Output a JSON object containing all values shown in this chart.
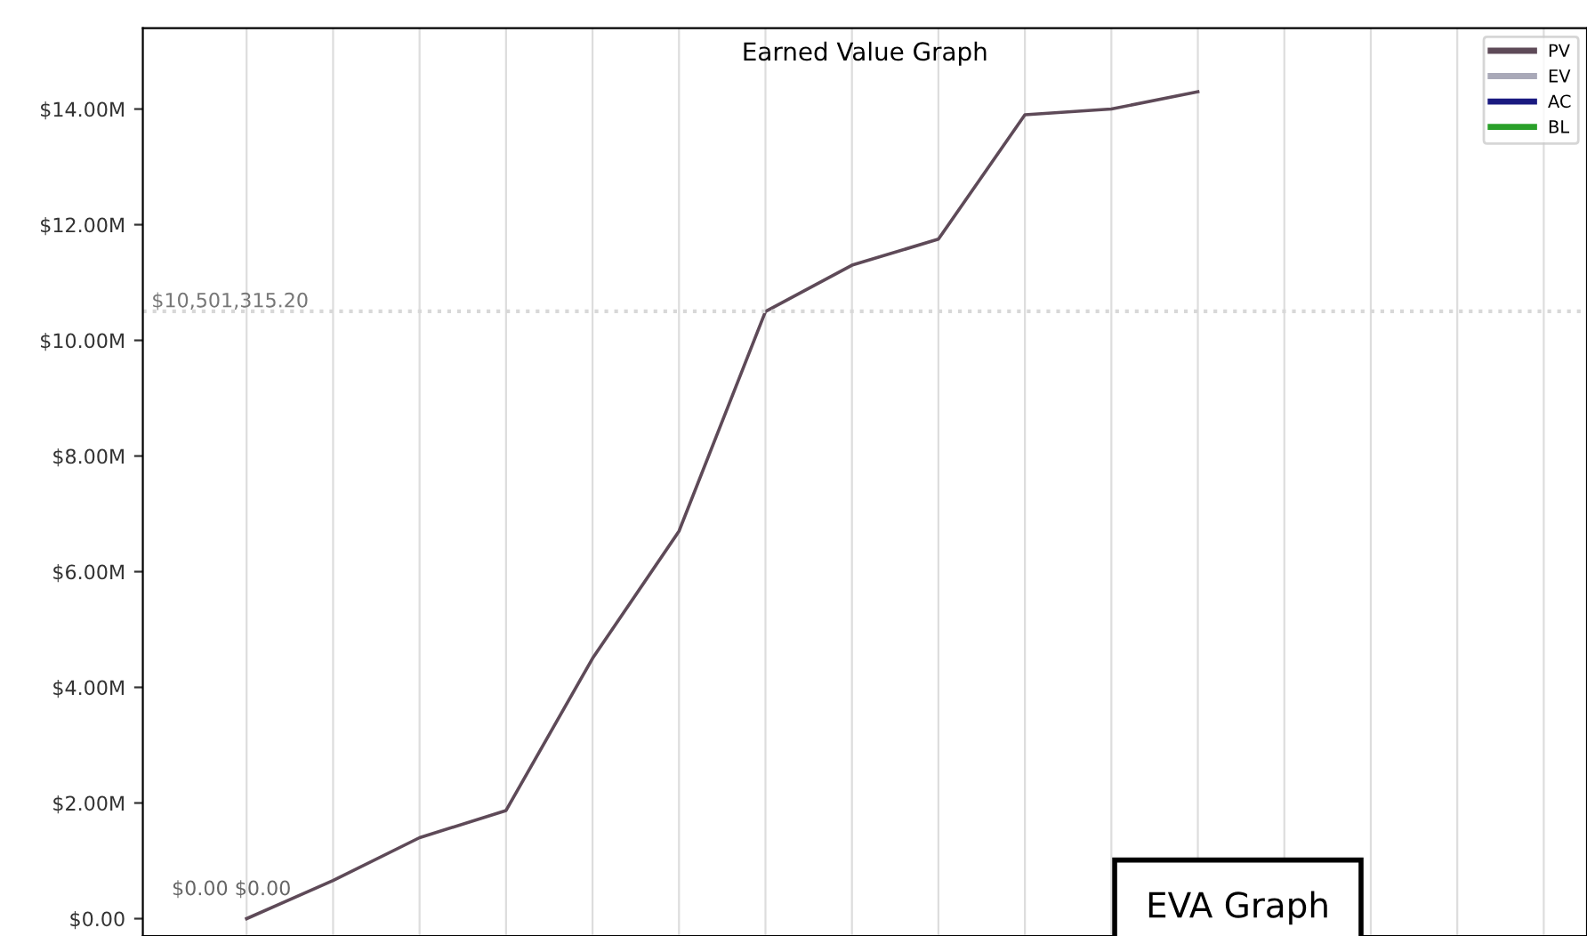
{
  "chart_data": {
    "type": "line",
    "title": "Earned Value Graph",
    "categories": [
      null,
      null,
      null,
      null,
      null,
      null,
      null,
      null,
      null,
      null,
      null,
      null,
      null,
      null,
      null,
      null
    ],
    "series": [
      {
        "name": "PV",
        "color": "#5e4a58",
        "values": [
          0,
          660000,
          1400000,
          1870000,
          4500000,
          6700000,
          10500000,
          11300000,
          11750000,
          13900000,
          14000000,
          14300000,
          null,
          null,
          null,
          null
        ]
      },
      {
        "name": "EV",
        "color": "#a9a9b8",
        "values": [
          null,
          null,
          null,
          null,
          null,
          null,
          null,
          null,
          null,
          null,
          null,
          null,
          null,
          null,
          null,
          null
        ]
      },
      {
        "name": "AC",
        "color": "#1a1a80",
        "values": [
          null,
          null,
          null,
          null,
          null,
          null,
          null,
          null,
          null,
          null,
          null,
          null,
          null,
          null,
          null,
          null
        ]
      },
      {
        "name": "BL",
        "color": "#2aa02a",
        "values": [
          null,
          null,
          null,
          null,
          null,
          null,
          null,
          null,
          null,
          null,
          null,
          null,
          null,
          null,
          null,
          null
        ]
      }
    ],
    "ylim": [
      -300000,
      15400000
    ],
    "yticks": [
      {
        "value": 0,
        "label": "$0.00"
      },
      {
        "value": 2000000,
        "label": "$2.00M"
      },
      {
        "value": 4000000,
        "label": "$4.00M"
      },
      {
        "value": 6000000,
        "label": "$6.00M"
      },
      {
        "value": 8000000,
        "label": "$8.00M"
      },
      {
        "value": 10000000,
        "label": "$10.00M"
      },
      {
        "value": 12000000,
        "label": "$12.00M"
      },
      {
        "value": 14000000,
        "label": "$14.00M"
      }
    ],
    "tick_labels": "y",
    "grid": "x",
    "legend": "top right",
    "line_style": "solid",
    "marker": "none",
    "ref_lines": [
      {
        "axis": "y",
        "value": 10501315.2,
        "label": "$10,501,315.20",
        "color": "#d8d8d8",
        "line_style": "dotted"
      }
    ],
    "annotations": [
      "$0.00 $0.00",
      "EVA Graph"
    ]
  }
}
